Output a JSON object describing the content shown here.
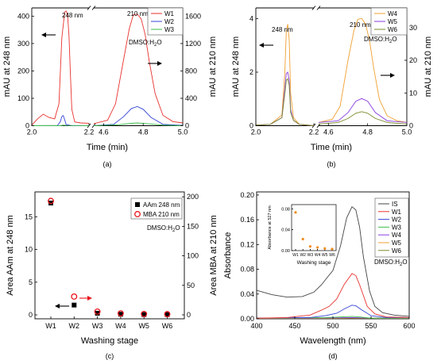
{
  "chart_data": [
    {
      "id": "a",
      "type": "line",
      "caption": "(a)",
      "xlabel": "Time (min)",
      "ylabel_left": "mAU at 248 nm",
      "ylabel_right": "mAU at 210 nm",
      "x_ticks": [
        "2.0",
        "2.2",
        "4.6",
        "4.8",
        "5.0"
      ],
      "yleft_ticks": [
        "0",
        "100",
        "200",
        "300",
        "400"
      ],
      "yright_ticks": [
        "0",
        "400",
        "800",
        "1200",
        "1600"
      ],
      "yleft_lim": [
        0,
        430
      ],
      "yright_lim": [
        0,
        1720
      ],
      "annotations": [
        "248 nm",
        "210 nm",
        "DMSO:H",
        "2",
        "O"
      ],
      "legend": {
        "position": "top-right",
        "entries": [
          "W1",
          "W2",
          "W3"
        ]
      },
      "colors": [
        "#e8322e",
        "#3646d6",
        "#3cc04a"
      ],
      "segments": [
        {
          "x_range": [
            2.0,
            2.2
          ],
          "axis": "left",
          "series": [
            {
              "name": "W1",
              "x": [
                2.0,
                2.02,
                2.04,
                2.06,
                2.08,
                2.095,
                2.105,
                2.115,
                2.12,
                2.125,
                2.13,
                2.135,
                2.14,
                2.15,
                2.17,
                2.2
              ],
              "y": [
                2,
                25,
                42,
                30,
                25,
                80,
                320,
                415,
                419,
                405,
                330,
                190,
                60,
                14,
                10,
                9
              ]
            },
            {
              "name": "W2",
              "x": [
                2.0,
                2.09,
                2.1,
                2.105,
                2.11,
                2.115,
                2.12,
                2.14,
                2.2
              ],
              "y": [
                0,
                1,
                15,
                33,
                37,
                22,
                4,
                0,
                0
              ]
            },
            {
              "name": "W3",
              "x": [
                2.0,
                2.1,
                2.11,
                2.12,
                2.2
              ],
              "y": [
                0,
                0,
                2,
                1,
                0
              ]
            }
          ]
        },
        {
          "x_range": [
            4.55,
            5.0
          ],
          "axis": "right",
          "series": [
            {
              "name": "W1",
              "x": [
                4.55,
                4.62,
                4.66,
                4.7,
                4.73,
                4.75,
                4.77,
                4.79,
                4.81,
                4.83,
                4.86,
                4.9,
                4.95,
                5.0
              ],
              "y": [
                30,
                80,
                320,
                950,
                1420,
                1620,
                1630,
                1560,
                1330,
                950,
                470,
                150,
                60,
                40
              ]
            },
            {
              "name": "W2",
              "x": [
                4.55,
                4.65,
                4.7,
                4.74,
                4.77,
                4.8,
                4.84,
                4.9,
                5.0
              ],
              "y": [
                0,
                20,
                130,
                250,
                280,
                240,
                120,
                20,
                5
              ]
            },
            {
              "name": "W3",
              "x": [
                4.55,
                4.68,
                4.74,
                4.77,
                4.82,
                4.9,
                5.0
              ],
              "y": [
                0,
                15,
                35,
                40,
                30,
                8,
                0
              ]
            }
          ]
        }
      ]
    },
    {
      "id": "b",
      "type": "line",
      "caption": "(b)",
      "xlabel": "Time (min)",
      "ylabel_left": "mAU at 248 nm",
      "ylabel_right": "mAU at 210 nm",
      "x_ticks": [
        "2.0",
        "2.2",
        "4.6",
        "4.8",
        "5.0"
      ],
      "yleft_ticks": [
        "0",
        "2",
        "4"
      ],
      "yright_ticks": [
        "0",
        "10",
        "20",
        "30"
      ],
      "yleft_lim": [
        0,
        4.4
      ],
      "yright_lim": [
        0,
        36
      ],
      "annotations": [
        "248 nm",
        "210 nm",
        "DMSO:H",
        "2",
        "O"
      ],
      "legend": {
        "position": "top-right",
        "entries": [
          "W4",
          "W5",
          "W6"
        ]
      },
      "colors": [
        "#f0a030",
        "#8b3ee0",
        "#7a8a2a"
      ],
      "segments": [
        {
          "x_range": [
            2.0,
            2.2
          ],
          "axis": "left",
          "series": [
            {
              "name": "W4",
              "x": [
                2.0,
                2.05,
                2.09,
                2.1,
                2.105,
                2.11,
                2.115,
                2.12,
                2.13,
                2.15,
                2.2
              ],
              "y": [
                0.02,
                0.05,
                0.4,
                2.0,
                3.5,
                3.8,
                3.2,
                1.2,
                0.3,
                0.05,
                0.0
              ]
            },
            {
              "name": "W5",
              "x": [
                2.0,
                2.05,
                2.09,
                2.1,
                2.105,
                2.11,
                2.115,
                2.12,
                2.13,
                2.15,
                2.2
              ],
              "y": [
                0.02,
                0.05,
                0.3,
                1.4,
                1.95,
                2.0,
                1.7,
                0.6,
                0.2,
                0.05,
                0.0
              ]
            },
            {
              "name": "W6",
              "x": [
                2.0,
                2.05,
                2.09,
                2.1,
                2.105,
                2.11,
                2.115,
                2.12,
                2.13,
                2.15,
                2.2
              ],
              "y": [
                0.02,
                0.05,
                0.3,
                1.2,
                1.7,
                1.75,
                1.5,
                0.5,
                0.2,
                0.05,
                0.0
              ]
            }
          ]
        },
        {
          "x_range": [
            4.55,
            5.0
          ],
          "axis": "right",
          "series": [
            {
              "name": "W4",
              "x": [
                4.55,
                4.62,
                4.66,
                4.7,
                4.73,
                4.75,
                4.77,
                4.79,
                4.81,
                4.83,
                4.86,
                4.9,
                4.95,
                5.0
              ],
              "y": [
                1,
                2,
                6,
                20,
                29,
                32.5,
                32.8,
                31,
                26,
                18,
                8,
                3,
                1.5,
                1
              ]
            },
            {
              "name": "W5",
              "x": [
                4.55,
                4.65,
                4.7,
                4.74,
                4.77,
                4.8,
                4.84,
                4.9,
                5.0
              ],
              "y": [
                1,
                1.5,
                4,
                7.5,
                8.3,
                7.5,
                4,
                1.5,
                1
              ]
            },
            {
              "name": "W6",
              "x": [
                4.55,
                4.65,
                4.7,
                4.74,
                4.77,
                4.8,
                4.84,
                4.9,
                5.0
              ],
              "y": [
                0.5,
                1,
                2.2,
                3.8,
                4.3,
                3.8,
                2.2,
                1,
                0.5
              ]
            }
          ]
        }
      ]
    },
    {
      "id": "c",
      "type": "scatter",
      "caption": "(c)",
      "xlabel": "Washing stage",
      "ylabel_left": "Area AAm at 248 nm",
      "ylabel_right": "Area MBA at 210 nm",
      "categories": [
        "W1",
        "W2",
        "W3",
        "W4",
        "W5",
        "W6"
      ],
      "yleft_ticks": [
        "0",
        "5",
        "10",
        "15"
      ],
      "yright_ticks": [
        "0",
        "50",
        "100",
        "150",
        "200"
      ],
      "yleft_lim": [
        -0.6,
        18.8
      ],
      "yright_lim": [
        -6.7,
        208.3
      ],
      "annotations": [
        "DMSO:H",
        "2",
        "O"
      ],
      "legend": {
        "position": "top-right",
        "entries": [
          "AAm 248 nm",
          "MBA 210 nm"
        ]
      },
      "colors": [
        "#000000",
        "#e8141c"
      ],
      "series": [
        {
          "name": "AAm 248 nm",
          "axis": "left",
          "values": [
            17.1,
            1.5,
            0.25,
            0.1,
            0.05,
            0.05
          ]
        },
        {
          "name": "MBA 210 nm",
          "axis": "right",
          "values": [
            193,
            31,
            5.5,
            2.5,
            1.5,
            1.2
          ]
        }
      ]
    },
    {
      "id": "d",
      "type": "line",
      "caption": "(d)",
      "xlabel": "Wavelength (nm)",
      "ylabel": "Absorbance",
      "xlim": [
        400,
        600
      ],
      "ylim": [
        0,
        0.205
      ],
      "x_ticks": [
        "400",
        "450",
        "500",
        "550",
        "600"
      ],
      "y_ticks": [
        "0.00",
        "0.04",
        "0.08",
        "0.12",
        "0.16",
        "0.20"
      ],
      "annotations": [
        "DMSO:H",
        "2",
        "O"
      ],
      "legend": {
        "position": "top-right",
        "entries": [
          "IS",
          "W1",
          "W2",
          "W3",
          "W4",
          "W5",
          "W6"
        ]
      },
      "colors": [
        "#444444",
        "#e8322e",
        "#3646d6",
        "#3cc04a",
        "#8b3ee0",
        "#f0a030",
        "#7a8a2a"
      ],
      "series": [
        {
          "name": "IS",
          "x": [
            400,
            420,
            440,
            460,
            475,
            485,
            492,
            500,
            510,
            518,
            525,
            530,
            535,
            540,
            548,
            555,
            565,
            580,
            600
          ],
          "y": [
            0.046,
            0.039,
            0.035,
            0.036,
            0.043,
            0.055,
            0.066,
            0.078,
            0.118,
            0.163,
            0.181,
            0.176,
            0.148,
            0.1,
            0.045,
            0.02,
            0.01,
            0.006,
            0.004
          ]
        },
        {
          "name": "W1",
          "x": [
            400,
            440,
            470,
            485,
            495,
            505,
            515,
            525,
            530,
            535,
            545,
            555,
            570,
            600
          ],
          "y": [
            0.001,
            0.002,
            0.006,
            0.014,
            0.02,
            0.032,
            0.056,
            0.073,
            0.07,
            0.055,
            0.02,
            0.008,
            0.003,
            0.002
          ]
        },
        {
          "name": "W2",
          "x": [
            400,
            470,
            490,
            505,
            515,
            525,
            530,
            537,
            550,
            570,
            600
          ],
          "y": [
            0.001,
            0.002,
            0.005,
            0.009,
            0.016,
            0.022,
            0.021,
            0.015,
            0.005,
            0.002,
            0.002
          ]
        },
        {
          "name": "W3",
          "x": [
            400,
            490,
            510,
            525,
            535,
            550,
            600
          ],
          "y": [
            0.001,
            0.002,
            0.003,
            0.004,
            0.003,
            0.001,
            0.001
          ]
        },
        {
          "name": "W4",
          "x": [
            400,
            500,
            525,
            550,
            600
          ],
          "y": [
            0.001,
            0.0015,
            0.002,
            0.0012,
            0.0008
          ]
        },
        {
          "name": "W5",
          "x": [
            400,
            500,
            525,
            550,
            600
          ],
          "y": [
            0.0008,
            0.001,
            0.0015,
            0.001,
            0.0006
          ]
        },
        {
          "name": "W6",
          "x": [
            400,
            500,
            525,
            550,
            600
          ],
          "y": [
            0.0006,
            0.0008,
            0.001,
            0.0008,
            0.0005
          ]
        }
      ],
      "inset": {
        "type": "scatter",
        "xlabel": "Washing stage",
        "ylabel": "Absorbance at 527 nm",
        "categories": [
          "W1",
          "W2",
          "W3",
          "W4",
          "W5",
          "W6"
        ],
        "y_ticks": [
          "0.00",
          "0.04",
          "0.08"
        ],
        "ylim": [
          0,
          0.088
        ],
        "color": "#f08c1e",
        "values": [
          0.073,
          0.022,
          0.008,
          0.006,
          0.004,
          0.003
        ]
      }
    }
  ]
}
